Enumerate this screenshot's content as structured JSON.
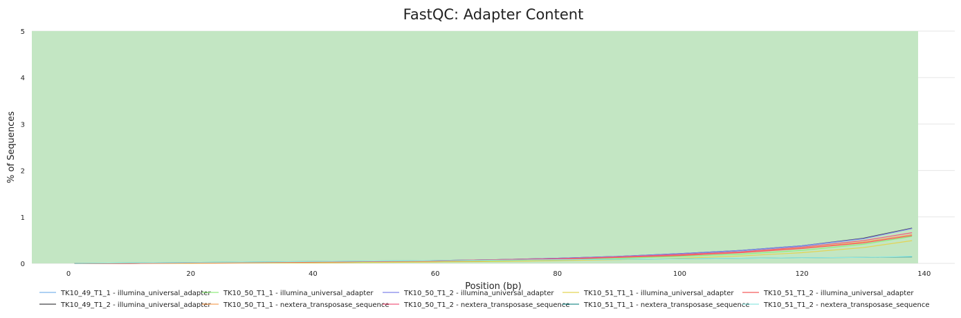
{
  "chart_data": {
    "type": "line",
    "title": "FastQC: Adapter Content",
    "xlabel": "Position (bp)",
    "ylabel": "% of Sequences",
    "xlim": [
      -6,
      145
    ],
    "ylim": [
      0,
      5
    ],
    "x_ticks": [
      "0",
      "20",
      "40",
      "60",
      "80",
      "100",
      "120",
      "140"
    ],
    "y_ticks": [
      "0",
      "1",
      "2",
      "3",
      "4",
      "5"
    ],
    "grid": true,
    "background_band": {
      "color": "#c3e6c3",
      "x_range": [
        -6,
        139
      ]
    },
    "legend_position": "bottom",
    "x": [
      1,
      10,
      20,
      30,
      40,
      50,
      60,
      70,
      80,
      90,
      100,
      110,
      120,
      130,
      138
    ],
    "series": [
      {
        "name": "TK10_49_T1_1 - illumina_universal_adapter",
        "color": "#7cb5ec",
        "values": [
          0,
          0,
          0.01,
          0.02,
          0.03,
          0.04,
          0.06,
          0.08,
          0.11,
          0.15,
          0.2,
          0.27,
          0.37,
          0.53,
          0.75
        ]
      },
      {
        "name": "TK10_49_T1_2 - illumina_universal_adapter",
        "color": "#434348",
        "values": [
          0,
          0,
          0.01,
          0.02,
          0.03,
          0.04,
          0.06,
          0.08,
          0.11,
          0.15,
          0.21,
          0.28,
          0.38,
          0.54,
          0.76
        ]
      },
      {
        "name": "TK10_50_T1_1 - illumina_universal_adapter",
        "color": "#90ed7d",
        "values": [
          0,
          0,
          0.01,
          0.01,
          0.02,
          0.03,
          0.04,
          0.06,
          0.08,
          0.11,
          0.15,
          0.2,
          0.28,
          0.41,
          0.58
        ]
      },
      {
        "name": "TK10_50_T1_1 - nextera_transposase_sequence",
        "color": "#f7a35c",
        "values": [
          0,
          0,
          0.01,
          0.02,
          0.03,
          0.04,
          0.05,
          0.07,
          0.1,
          0.13,
          0.18,
          0.24,
          0.33,
          0.46,
          0.62
        ]
      },
      {
        "name": "TK10_50_T1_2 - illumina_universal_adapter",
        "color": "#8085e9",
        "values": [
          0,
          0,
          0.01,
          0.02,
          0.03,
          0.04,
          0.06,
          0.08,
          0.11,
          0.15,
          0.21,
          0.28,
          0.38,
          0.53,
          0.75
        ]
      },
      {
        "name": "TK10_50_T1_2 - nextera_transposase_sequence",
        "color": "#f15c80",
        "values": [
          0,
          0,
          0.01,
          0.02,
          0.03,
          0.04,
          0.06,
          0.08,
          0.1,
          0.14,
          0.19,
          0.25,
          0.35,
          0.49,
          0.66
        ]
      },
      {
        "name": "TK10_51_T1_1 - illumina_universal_adapter",
        "color": "#e4d354",
        "values": [
          0,
          0,
          0,
          0.01,
          0.01,
          0.02,
          0.03,
          0.04,
          0.06,
          0.08,
          0.11,
          0.16,
          0.23,
          0.34,
          0.49
        ]
      },
      {
        "name": "TK10_51_T1_1 - nextera_transposase_sequence",
        "color": "#2b908f",
        "values": [
          0,
          0.01,
          0.02,
          0.03,
          0.04,
          0.05,
          0.06,
          0.07,
          0.08,
          0.09,
          0.1,
          0.11,
          0.12,
          0.13,
          0.14
        ]
      },
      {
        "name": "TK10_51_T1_2 - illumina_universal_adapter",
        "color": "#f45b5b",
        "values": [
          0,
          0,
          0.01,
          0.02,
          0.03,
          0.04,
          0.05,
          0.07,
          0.09,
          0.13,
          0.17,
          0.23,
          0.32,
          0.44,
          0.6
        ]
      },
      {
        "name": "TK10_51_T1_2 - nextera_transposase_sequence",
        "color": "#91e8e1",
        "values": [
          0,
          0.01,
          0.02,
          0.03,
          0.04,
          0.05,
          0.06,
          0.07,
          0.08,
          0.09,
          0.1,
          0.11,
          0.12,
          0.13,
          0.15
        ]
      }
    ]
  }
}
